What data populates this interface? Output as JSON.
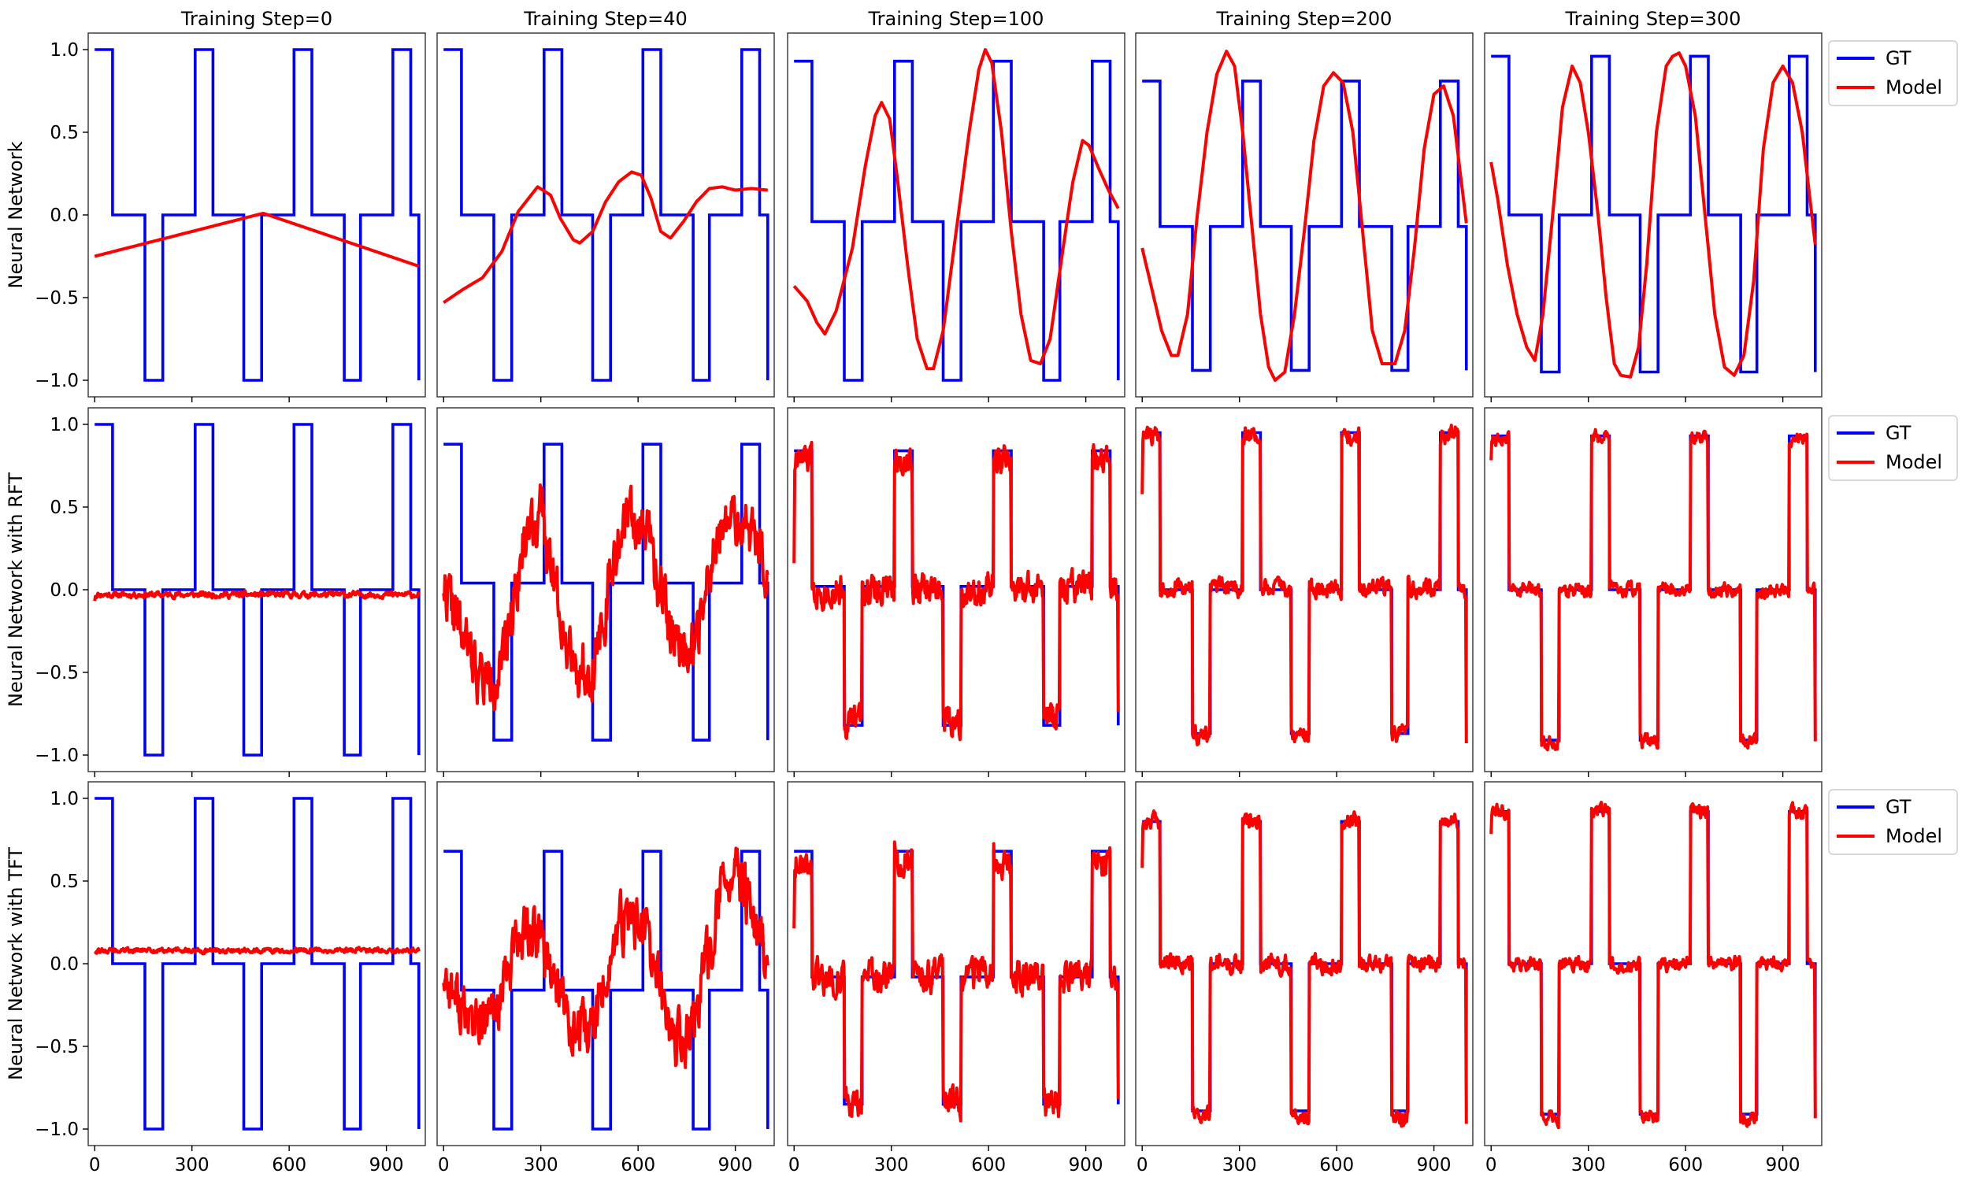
{
  "figure": {
    "column_titles": [
      "Training Step=0",
      "Training Step=40",
      "Training Step=100",
      "Training Step=200",
      "Training Step=300"
    ],
    "row_labels": [
      "Neural Network",
      "Neural Network with RFT",
      "Neural Network with TFT"
    ],
    "legend": [
      {
        "label": "GT",
        "color": "#0000ff"
      },
      {
        "label": "Model",
        "color": "#ff0000"
      }
    ]
  },
  "chart_data": {
    "type": "line",
    "layout": "grid 3 rows x 5 columns, shared axes",
    "xlim": [
      -20,
      1020
    ],
    "ylim": [
      -1.1,
      1.1
    ],
    "xticks": [
      0,
      300,
      600,
      900
    ],
    "yticks": [
      -1.0,
      -0.5,
      0.0,
      0.5,
      1.0
    ],
    "xtick_labels": [
      "0",
      "300",
      "600",
      "900"
    ],
    "ytick_labels": [
      "−1.0",
      "−0.5",
      "0.0",
      "0.5",
      "1.0"
    ],
    "legend_placement": "outside right of last column",
    "grid": false,
    "gt_segments_x": [
      0,
      55,
      155,
      210,
      310,
      365,
      460,
      515,
      615,
      670,
      770,
      820,
      920,
      975,
      1000
    ],
    "gt_segment_pattern": [
      "top",
      "mid",
      "bot",
      "mid",
      "top",
      "mid",
      "bot",
      "mid",
      "top",
      "mid",
      "bot",
      "mid",
      "top",
      "mid",
      "bot"
    ],
    "panels": [
      [
        {
          "gt": {
            "top": 1.0,
            "mid": 0.0,
            "bot": -1.0
          },
          "model": {
            "kind": "polyline",
            "points": [
              [
                0,
                -0.25
              ],
              [
                520,
                0.01
              ],
              [
                1000,
                -0.31
              ]
            ]
          }
        },
        {
          "gt": {
            "top": 1.0,
            "mid": 0.0,
            "bot": -1.0
          },
          "model": {
            "kind": "polyline",
            "points": [
              [
                0,
                -0.53
              ],
              [
                60,
                -0.45
              ],
              [
                120,
                -0.38
              ],
              [
                180,
                -0.22
              ],
              [
                230,
                0.02
              ],
              [
                290,
                0.17
              ],
              [
                330,
                0.12
              ],
              [
                360,
                -0.02
              ],
              [
                400,
                -0.15
              ],
              [
                420,
                -0.17
              ],
              [
                460,
                -0.1
              ],
              [
                500,
                0.08
              ],
              [
                540,
                0.2
              ],
              [
                580,
                0.26
              ],
              [
                610,
                0.24
              ],
              [
                640,
                0.1
              ],
              [
                670,
                -0.1
              ],
              [
                700,
                -0.14
              ],
              [
                740,
                -0.04
              ],
              [
                780,
                0.08
              ],
              [
                820,
                0.16
              ],
              [
                860,
                0.17
              ],
              [
                900,
                0.15
              ],
              [
                950,
                0.16
              ],
              [
                1000,
                0.15
              ]
            ]
          }
        },
        {
          "gt": {
            "top": 0.93,
            "mid": -0.04,
            "bot": -1.0
          },
          "model": {
            "kind": "polyline",
            "points": [
              [
                0,
                -0.43
              ],
              [
                40,
                -0.52
              ],
              [
                70,
                -0.65
              ],
              [
                95,
                -0.72
              ],
              [
                130,
                -0.58
              ],
              [
                180,
                -0.2
              ],
              [
                220,
                0.3
              ],
              [
                250,
                0.6
              ],
              [
                270,
                0.68
              ],
              [
                295,
                0.58
              ],
              [
                320,
                0.2
              ],
              [
                350,
                -0.3
              ],
              [
                380,
                -0.75
              ],
              [
                410,
                -0.93
              ],
              [
                430,
                -0.93
              ],
              [
                460,
                -0.7
              ],
              [
                500,
                -0.1
              ],
              [
                540,
                0.5
              ],
              [
                570,
                0.88
              ],
              [
                590,
                1.0
              ],
              [
                610,
                0.92
              ],
              [
                640,
                0.5
              ],
              [
                670,
                -0.1
              ],
              [
                700,
                -0.6
              ],
              [
                730,
                -0.88
              ],
              [
                760,
                -0.9
              ],
              [
                790,
                -0.75
              ],
              [
                830,
                -0.2
              ],
              [
                860,
                0.2
              ],
              [
                890,
                0.45
              ],
              [
                910,
                0.42
              ],
              [
                940,
                0.28
              ],
              [
                970,
                0.15
              ],
              [
                1000,
                0.04
              ]
            ]
          }
        },
        {
          "gt": {
            "top": 0.81,
            "mid": -0.07,
            "bot": -0.94
          },
          "model": {
            "kind": "polyline",
            "points": [
              [
                0,
                -0.2
              ],
              [
                30,
                -0.45
              ],
              [
                60,
                -0.7
              ],
              [
                90,
                -0.85
              ],
              [
                110,
                -0.85
              ],
              [
                140,
                -0.6
              ],
              [
                170,
                0.0
              ],
              [
                200,
                0.5
              ],
              [
                230,
                0.85
              ],
              [
                260,
                0.99
              ],
              [
                285,
                0.9
              ],
              [
                310,
                0.5
              ],
              [
                340,
                -0.1
              ],
              [
                365,
                -0.6
              ],
              [
                390,
                -0.92
              ],
              [
                410,
                -1.0
              ],
              [
                440,
                -0.95
              ],
              [
                470,
                -0.6
              ],
              [
                500,
                -0.1
              ],
              [
                530,
                0.45
              ],
              [
                560,
                0.78
              ],
              [
                590,
                0.86
              ],
              [
                620,
                0.8
              ],
              [
                650,
                0.5
              ],
              [
                680,
                -0.1
              ],
              [
                710,
                -0.7
              ],
              [
                740,
                -0.9
              ],
              [
                780,
                -0.9
              ],
              [
                810,
                -0.7
              ],
              [
                840,
                -0.2
              ],
              [
                870,
                0.4
              ],
              [
                900,
                0.73
              ],
              [
                930,
                0.78
              ],
              [
                960,
                0.6
              ],
              [
                1000,
                -0.05
              ]
            ]
          }
        },
        {
          "gt": {
            "top": 0.96,
            "mid": 0.0,
            "bot": -0.95
          },
          "model": {
            "kind": "polyline",
            "points": [
              [
                0,
                0.32
              ],
              [
                20,
                0.1
              ],
              [
                50,
                -0.3
              ],
              [
                80,
                -0.6
              ],
              [
                110,
                -0.8
              ],
              [
                135,
                -0.88
              ],
              [
                160,
                -0.6
              ],
              [
                190,
                0.0
              ],
              [
                220,
                0.65
              ],
              [
                250,
                0.9
              ],
              [
                275,
                0.8
              ],
              [
                300,
                0.5
              ],
              [
                330,
                0.0
              ],
              [
                355,
                -0.5
              ],
              [
                380,
                -0.9
              ],
              [
                400,
                -0.97
              ],
              [
                430,
                -0.98
              ],
              [
                455,
                -0.8
              ],
              [
                480,
                -0.3
              ],
              [
                510,
                0.5
              ],
              [
                540,
                0.9
              ],
              [
                560,
                0.96
              ],
              [
                580,
                0.98
              ],
              [
                600,
                0.9
              ],
              [
                630,
                0.6
              ],
              [
                660,
                0.0
              ],
              [
                690,
                -0.6
              ],
              [
                720,
                -0.92
              ],
              [
                750,
                -0.97
              ],
              [
                780,
                -0.85
              ],
              [
                810,
                -0.4
              ],
              [
                840,
                0.4
              ],
              [
                870,
                0.8
              ],
              [
                900,
                0.9
              ],
              [
                930,
                0.8
              ],
              [
                960,
                0.5
              ],
              [
                1000,
                -0.18
              ]
            ]
          }
        }
      ],
      [
        {
          "gt": {
            "top": 1.0,
            "mid": 0.0,
            "bot": -1.0
          },
          "model": {
            "kind": "noise",
            "seed": 11,
            "noise": 0.015,
            "base": {
              "top": -0.03,
              "mid": -0.03,
              "bot": -0.03
            },
            "start": -0.06
          }
        },
        {
          "gt": {
            "top": 0.88,
            "mid": 0.04,
            "bot": -0.91
          },
          "model": {
            "kind": "noisewave",
            "seed": 22,
            "noise": 0.14,
            "wave": [
              [
                0,
                0.05
              ],
              [
                60,
                -0.3
              ],
              [
                120,
                -0.55
              ],
              [
                180,
                -0.5
              ],
              [
                220,
                0.0
              ],
              [
                260,
                0.4
              ],
              [
                300,
                0.45
              ],
              [
                340,
                0.1
              ],
              [
                380,
                -0.3
              ],
              [
                420,
                -0.5
              ],
              [
                460,
                -0.45
              ],
              [
                500,
                -0.1
              ],
              [
                540,
                0.3
              ],
              [
                580,
                0.45
              ],
              [
                620,
                0.4
              ],
              [
                660,
                0.05
              ],
              [
                700,
                -0.2
              ],
              [
                740,
                -0.35
              ],
              [
                780,
                -0.3
              ],
              [
                820,
                0.1
              ],
              [
                860,
                0.35
              ],
              [
                900,
                0.42
              ],
              [
                950,
                0.35
              ],
              [
                1000,
                0.1
              ]
            ]
          }
        },
        {
          "gt": {
            "top": 0.84,
            "mid": 0.02,
            "bot": -0.82
          },
          "model": {
            "kind": "noise",
            "seed": 33,
            "noise": 0.08,
            "base": {
              "top": 0.78,
              "mid": 0.0,
              "bot": -0.78
            },
            "start": 0.2
          }
        },
        {
          "gt": {
            "top": 0.95,
            "mid": 0.0,
            "bot": -0.87
          },
          "model": {
            "kind": "noise",
            "seed": 44,
            "noise": 0.045,
            "base": {
              "top": 0.93,
              "mid": 0.01,
              "bot": -0.88
            },
            "start": 0.6
          }
        },
        {
          "gt": {
            "top": 0.93,
            "mid": 0.0,
            "bot": -0.91
          },
          "model": {
            "kind": "noise",
            "seed": 55,
            "noise": 0.035,
            "base": {
              "top": 0.92,
              "mid": 0.0,
              "bot": -0.92
            },
            "start": 0.8
          }
        }
      ],
      [
        {
          "gt": {
            "top": 1.0,
            "mid": 0.0,
            "bot": -1.0
          },
          "model": {
            "kind": "noise",
            "seed": 66,
            "noise": 0.012,
            "base": {
              "top": 0.08,
              "mid": 0.08,
              "bot": 0.08
            },
            "start": 0.08
          }
        },
        {
          "gt": {
            "top": 0.68,
            "mid": -0.16,
            "bot": -1.0
          },
          "model": {
            "kind": "noisewave",
            "seed": 77,
            "noise": 0.14,
            "wave": [
              [
                0,
                -0.05
              ],
              [
                60,
                -0.3
              ],
              [
                120,
                -0.4
              ],
              [
                180,
                -0.2
              ],
              [
                220,
                0.1
              ],
              [
                260,
                0.2
              ],
              [
                300,
                0.15
              ],
              [
                340,
                -0.05
              ],
              [
                380,
                -0.3
              ],
              [
                420,
                -0.45
              ],
              [
                460,
                -0.4
              ],
              [
                500,
                -0.1
              ],
              [
                540,
                0.2
              ],
              [
                580,
                0.3
              ],
              [
                620,
                0.2
              ],
              [
                660,
                -0.1
              ],
              [
                700,
                -0.4
              ],
              [
                740,
                -0.5
              ],
              [
                780,
                -0.3
              ],
              [
                820,
                0.1
              ],
              [
                860,
                0.45
              ],
              [
                900,
                0.55
              ],
              [
                950,
                0.3
              ],
              [
                1000,
                0.0
              ]
            ]
          }
        },
        {
          "gt": {
            "top": 0.68,
            "mid": -0.08,
            "bot": -0.85
          },
          "model": {
            "kind": "noise",
            "seed": 88,
            "noise": 0.08,
            "base": {
              "top": 0.62,
              "mid": -0.08,
              "bot": -0.85
            },
            "start": 0.25
          }
        },
        {
          "gt": {
            "top": 0.86,
            "mid": 0.0,
            "bot": -0.89
          },
          "model": {
            "kind": "noise",
            "seed": 99,
            "noise": 0.045,
            "base": {
              "top": 0.86,
              "mid": 0.0,
              "bot": -0.92
            },
            "start": 0.6
          }
        },
        {
          "gt": {
            "top": 0.92,
            "mid": 0.0,
            "bot": -0.91
          },
          "model": {
            "kind": "noise",
            "seed": 111,
            "noise": 0.035,
            "base": {
              "top": 0.92,
              "mid": 0.0,
              "bot": -0.93
            },
            "start": 0.8
          }
        }
      ]
    ]
  }
}
